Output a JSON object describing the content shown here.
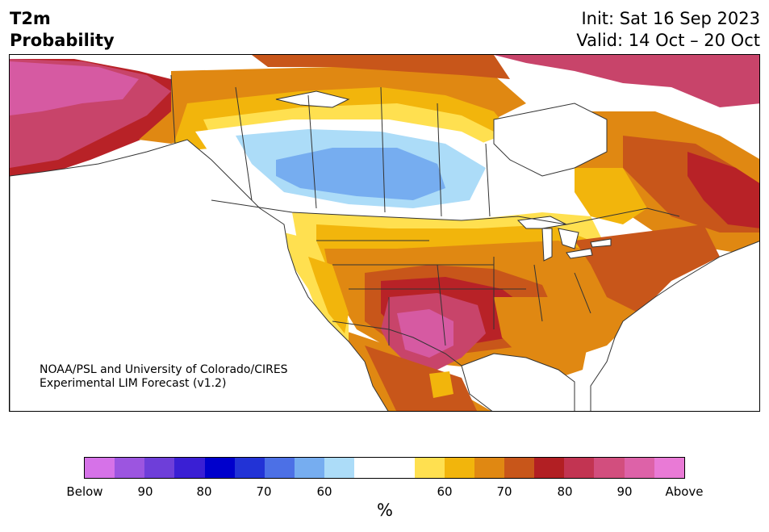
{
  "title": {
    "line1": "T2m",
    "line2": "Probability"
  },
  "forecast": {
    "init": "Init: Sat 16 Sep 2023",
    "valid": "Valid: 14 Oct – 20 Oct"
  },
  "credit": {
    "line1": "NOAA/PSL and University of Colorado/CIRES",
    "line2": "Experimental LIM Forecast (v1.2)"
  },
  "colorbar": {
    "unit": "%",
    "labels": [
      "Below",
      "90",
      "80",
      "70",
      "60",
      "60",
      "70",
      "80",
      "90",
      "Above"
    ],
    "colors": [
      "#d672e8",
      "#9c55e0",
      "#6e3ed9",
      "#3a1fd4",
      "#0000cc",
      "#2233d6",
      "#4c70e6",
      "#76adf0",
      "#acdcf8",
      "#ffffff",
      "#ffffff",
      "#ffe050",
      "#f2b50c",
      "#e08812",
      "#c8561a",
      "#b21f23",
      "#c23452",
      "#d24e7e",
      "#dd62a8",
      "#e97ad6"
    ]
  },
  "map": {
    "region": "North America",
    "colors": {
      "pink": "#d65aa2",
      "magenta": "#c8446a",
      "darkred": "#b82227",
      "redorange": "#c8561a",
      "orange": "#e08812",
      "gold": "#f2b50c",
      "yellow": "#ffe050",
      "lightblue": "#acdcf8",
      "blue": "#76adf0",
      "water": "#ffffff"
    }
  }
}
